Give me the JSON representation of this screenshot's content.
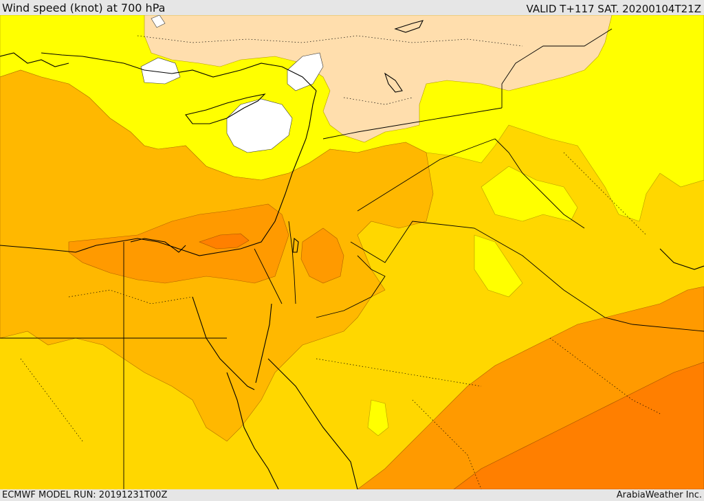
{
  "header": {
    "title": "Wind speed (knot) at 700 hPa",
    "valid_time": "VALID T+117 SAT. 20200104T21Z"
  },
  "footer": {
    "model_run": "ECMWF MODEL RUN: 20191231T00Z",
    "credit": "ArabiaWeather Inc."
  },
  "colors": {
    "calm": "#ffffff",
    "very_light": "#ffdead",
    "light": "#ffff00",
    "moderate": "#ffd700",
    "fresh": "#ffb800",
    "strong": "#ff9a00",
    "very_strong": "#ff7f00",
    "lines": "#000000"
  }
}
